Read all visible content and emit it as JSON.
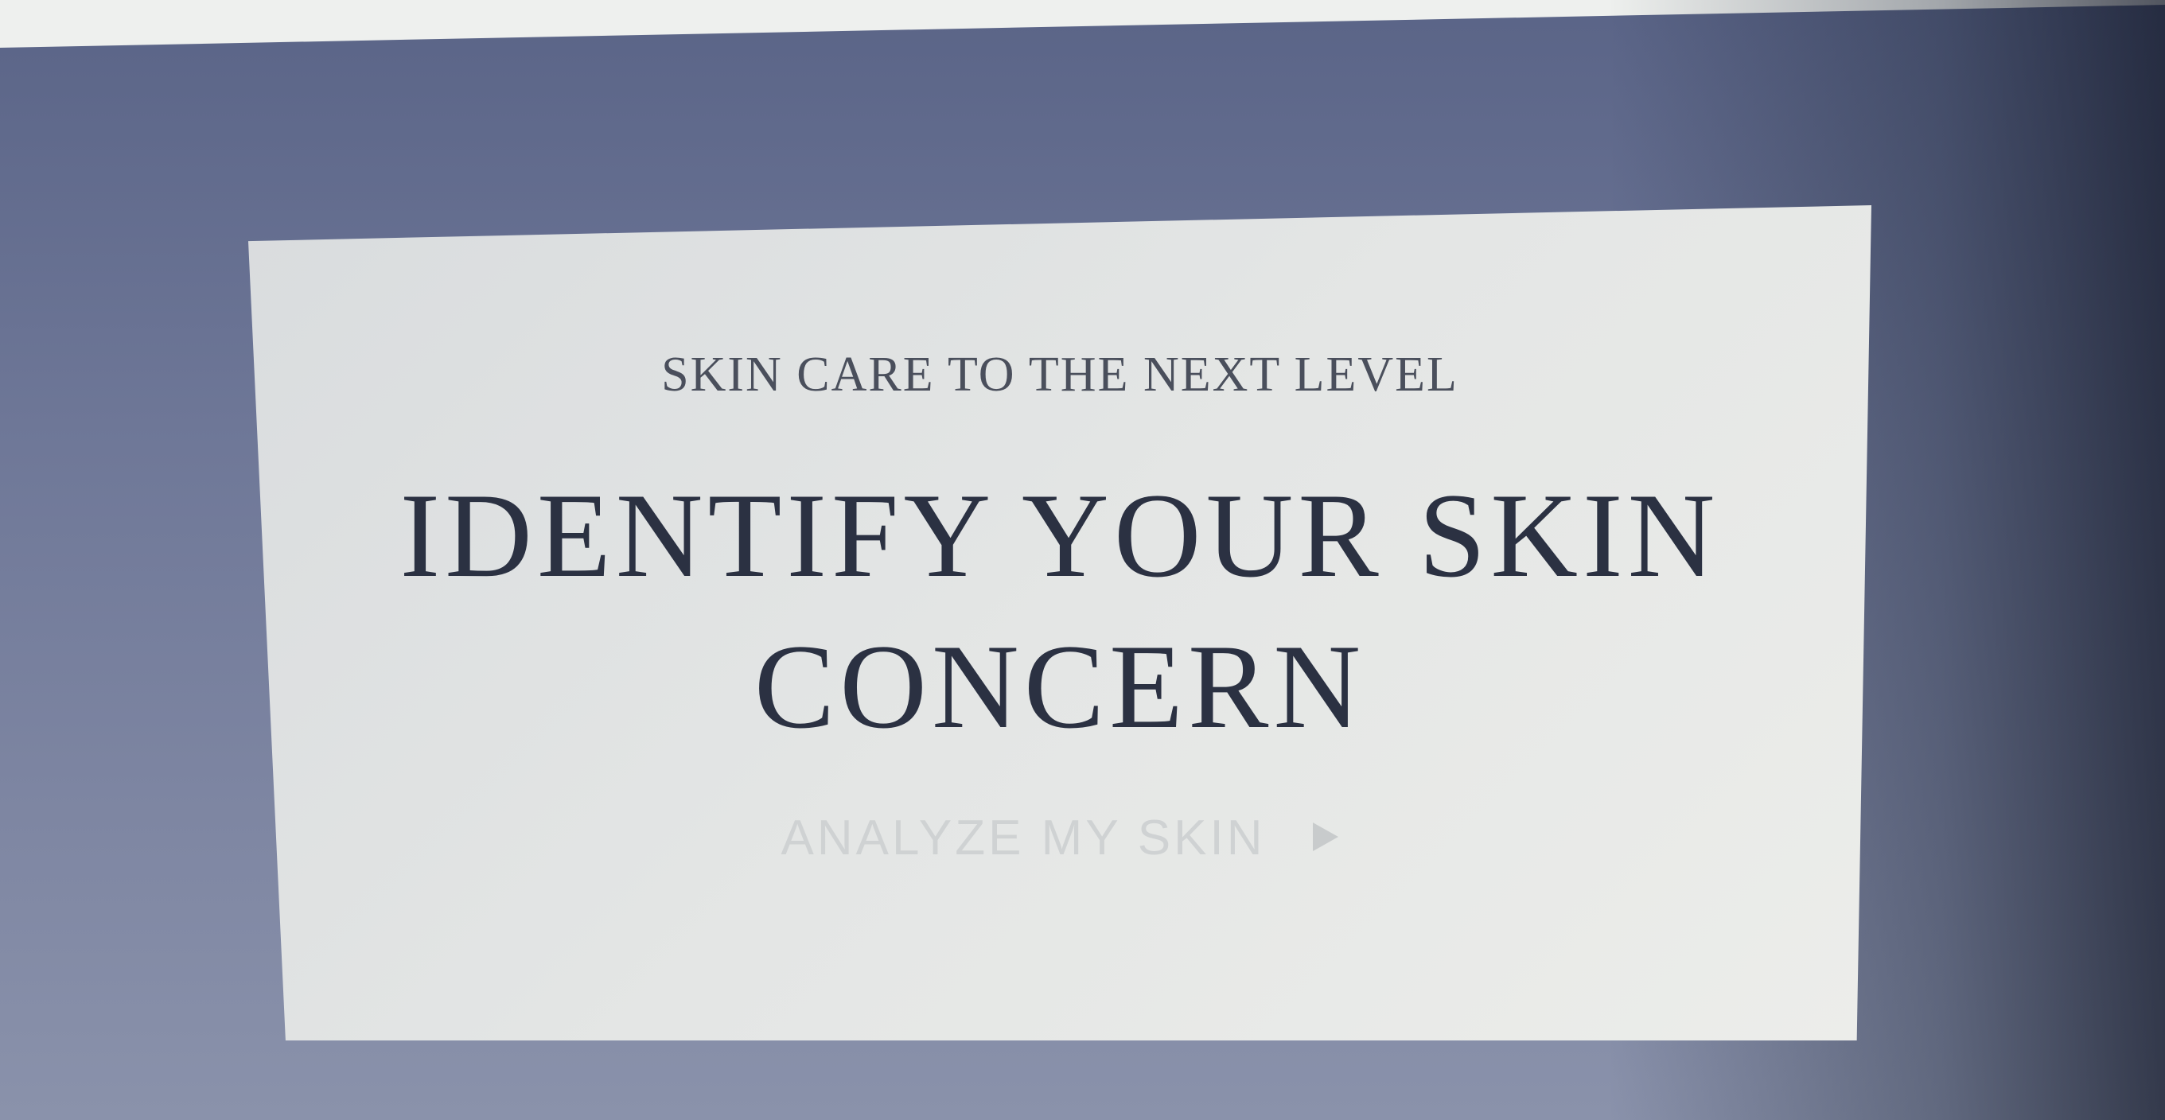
{
  "hero": {
    "eyebrow": "SKIN CARE TO THE NEXT LEVEL",
    "headline_line1": "IDENTIFY YOUR SKIN",
    "headline_line2": "CONCERN",
    "cta_label": "ANALYZE MY SKIN",
    "cta_icon": "play-arrow-icon"
  },
  "colors": {
    "background": "#6f7898",
    "card": "#e4e6e5",
    "headline": "#2b3142",
    "cta": "#cfd2d3"
  }
}
